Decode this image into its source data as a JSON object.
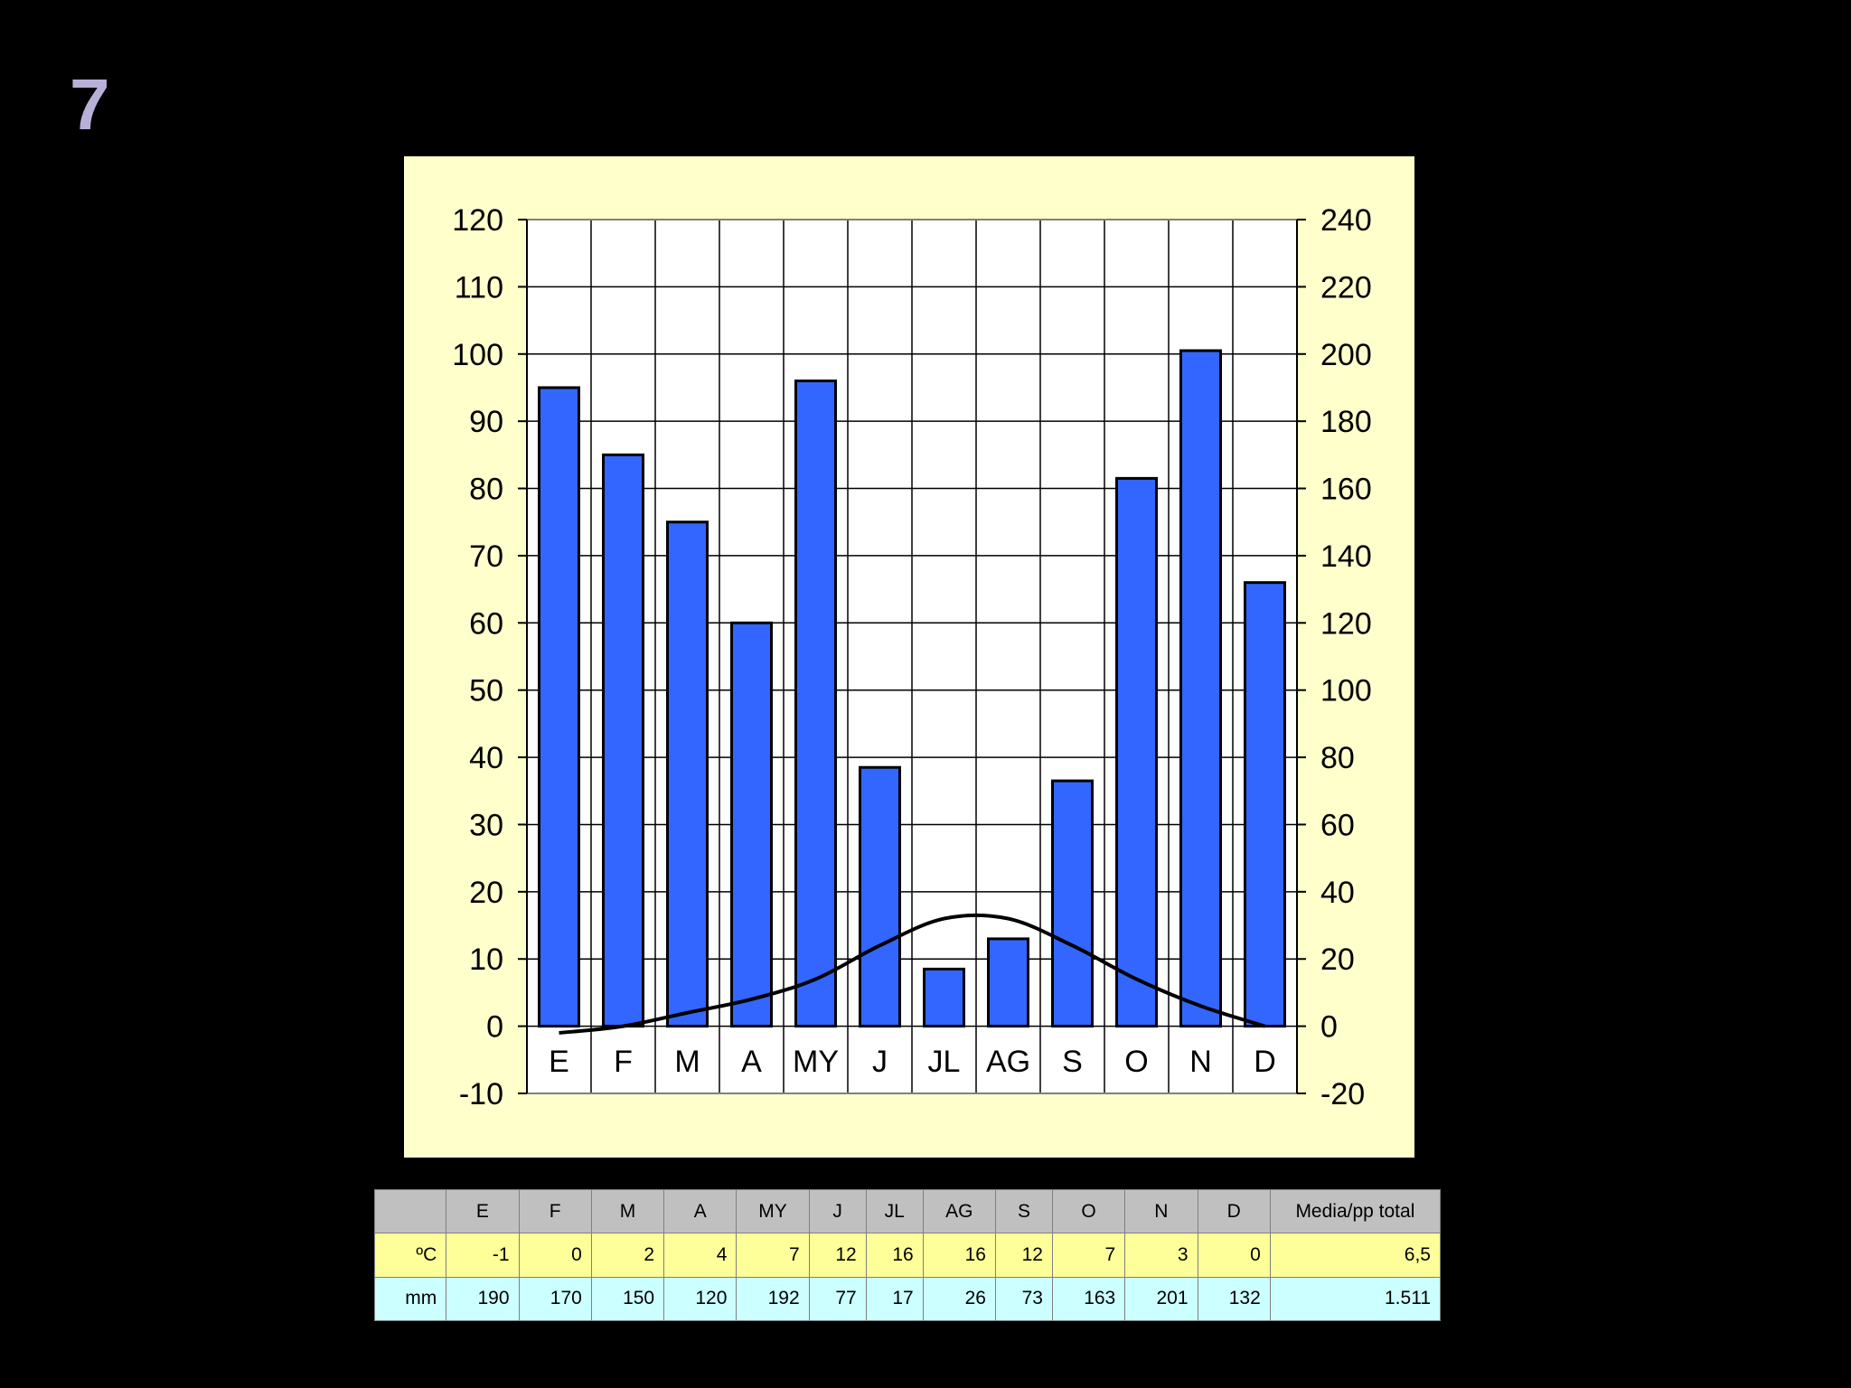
{
  "slide_number": "7",
  "chart_data": {
    "type": "bar",
    "categories": [
      "E",
      "F",
      "M",
      "A",
      "MY",
      "J",
      "JL",
      "AG",
      "S",
      "O",
      "N",
      "D"
    ],
    "series": [
      {
        "type": "bar",
        "axis": "right",
        "values": [
          190,
          170,
          150,
          120,
          192,
          77,
          17,
          26,
          73,
          163,
          201,
          132
        ]
      },
      {
        "type": "line",
        "axis": "left",
        "values": [
          -1,
          0,
          2,
          4,
          7,
          12,
          16,
          16,
          12,
          7,
          3,
          0
        ]
      }
    ],
    "ylim_left": [
      -10,
      120
    ],
    "ylim_right": [
      -20,
      240
    ],
    "left_ticks": [
      "120",
      "110",
      "100",
      "90",
      "80",
      "70",
      "60",
      "50",
      "40",
      "30",
      "20",
      "10",
      "0",
      "-10"
    ],
    "right_ticks": [
      "240",
      "220",
      "200",
      "180",
      "160",
      "140",
      "120",
      "100",
      "80",
      "60",
      "40",
      "20",
      "0",
      "-20"
    ],
    "grid": true,
    "colors": {
      "bar": "#3366ff",
      "line": "#000000",
      "panel": "#ffffcc"
    }
  },
  "table": {
    "headers": [
      "",
      "E",
      "F",
      "M",
      "A",
      "MY",
      "J",
      "JL",
      "AG",
      "S",
      "O",
      "N",
      "D",
      "Media/pp total"
    ],
    "rows": [
      {
        "label": "ºC",
        "values": [
          "-1",
          "0",
          "2",
          "4",
          "7",
          "12",
          "16",
          "16",
          "12",
          "7",
          "3",
          "0"
        ],
        "total": "6,5"
      },
      {
        "label": "mm",
        "values": [
          "190",
          "170",
          "150",
          "120",
          "192",
          "77",
          "17",
          "26",
          "73",
          "163",
          "201",
          "132"
        ],
        "total": "1.511"
      }
    ]
  }
}
